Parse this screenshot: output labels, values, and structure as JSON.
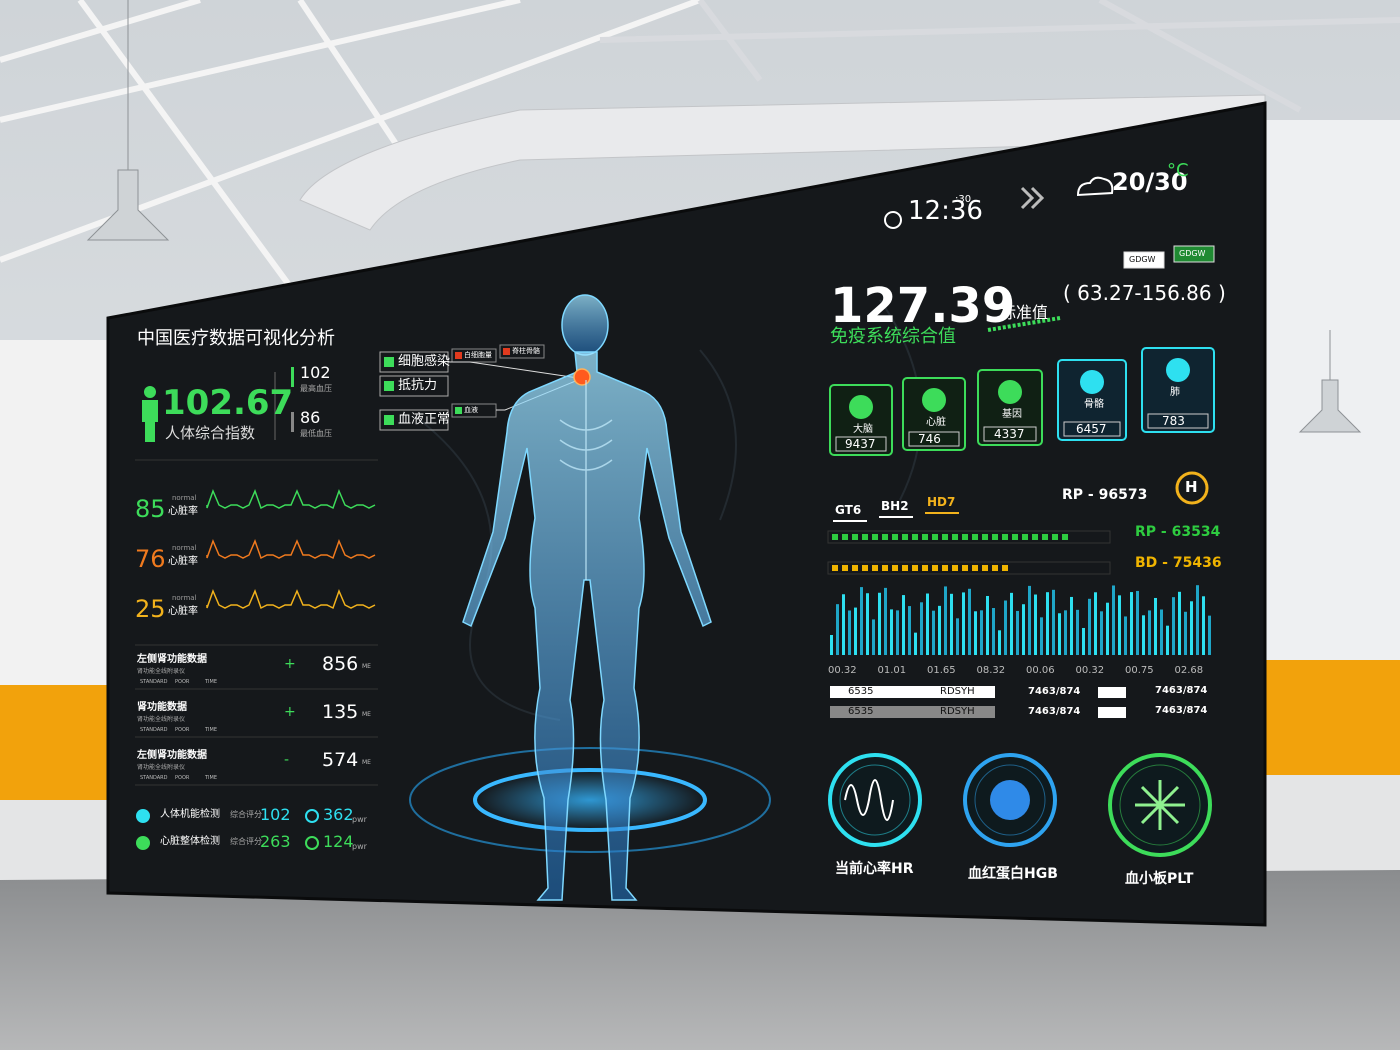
{
  "header": {
    "title": "中国医疗数据可视化分析",
    "time": "12:36",
    "time_seconds": ":30",
    "weather": "20/30",
    "weather_unit": "°C",
    "badges": [
      "GDGW",
      "GDGW"
    ]
  },
  "left": {
    "index": {
      "value": "102.67",
      "label": "人体综合指数"
    },
    "pressure": [
      {
        "value": "102",
        "label": "最高血压"
      },
      {
        "value": "86",
        "label": "最低血压"
      }
    ],
    "heart_rates": [
      {
        "value": "85",
        "status": "normal",
        "label": "心脏率",
        "color": "#3ddc5a"
      },
      {
        "value": "76",
        "status": "normal",
        "label": "心脏率",
        "color": "#f07a1e"
      },
      {
        "value": "25",
        "status": "normal",
        "label": "心脏率",
        "color": "#f2b21c"
      }
    ],
    "functions": [
      {
        "title": "左侧肾功能数据",
        "subtitle": "肾功能全线附录仪",
        "legend": [
          "STANDARD",
          "POOR",
          "TIME"
        ],
        "sign": "+",
        "value": "856",
        "unit": "ME"
      },
      {
        "title": "肾功能数据",
        "subtitle": "肾功能全线附录仪",
        "legend": [
          "STANDARD",
          "POOR",
          "TIME"
        ],
        "sign": "+",
        "value": "135",
        "unit": "ME"
      },
      {
        "title": "左侧肾功能数据",
        "subtitle": "肾功能全线附录仪",
        "legend": [
          "STANDARD",
          "POOR",
          "TIME"
        ],
        "sign": "-",
        "value": "574",
        "unit": "ME"
      }
    ],
    "checks": [
      {
        "label": "人体机能检测",
        "score_label": "综合评分",
        "score": "102",
        "power": "362",
        "power_unit": "pwr",
        "color": "#2ee0f0"
      },
      {
        "label": "心脏整体检测",
        "score_label": "综合评分",
        "score": "263",
        "power": "124",
        "power_unit": "pwr",
        "color": "#3ddc5a"
      }
    ]
  },
  "center": {
    "tags": [
      "细胞感染",
      "抵抗力",
      "血液正常"
    ],
    "small_tags": [
      "白细胞量",
      "脊柱骨骼",
      "血液"
    ]
  },
  "right": {
    "main": {
      "value": "127.39",
      "label": "免疫系统综合值",
      "standard_label": "标准值",
      "range": "( 63.27-156.86 )"
    },
    "organs": [
      {
        "name": "大脑",
        "value": "9437"
      },
      {
        "name": "心脏",
        "value": "746"
      },
      {
        "name": "基因",
        "value": "4337"
      },
      {
        "name": "骨骼",
        "value": "6457"
      },
      {
        "name": "肺",
        "value": "783"
      }
    ],
    "tabs": [
      "GT6",
      "BH2",
      "HD7"
    ],
    "rp": "RP - 96573",
    "logo": "H",
    "bars": [
      {
        "label": "RP - 63534",
        "color": "#2ecc40"
      },
      {
        "label": "BD - 75436",
        "color": "#f0b400"
      }
    ],
    "wave_labels": [
      "00.32",
      "01.01",
      "01.65",
      "08.32",
      "00.06",
      "00.32",
      "00.75",
      "02.68"
    ],
    "table": [
      [
        "6535",
        "RDSYH",
        "7463/874",
        "7463/874"
      ],
      [
        "6535",
        "RDSYH",
        "7463/874",
        "7463/874"
      ]
    ],
    "gauges": [
      "当前心率HR",
      "血红蛋白HGB",
      "血小板PLT"
    ]
  }
}
